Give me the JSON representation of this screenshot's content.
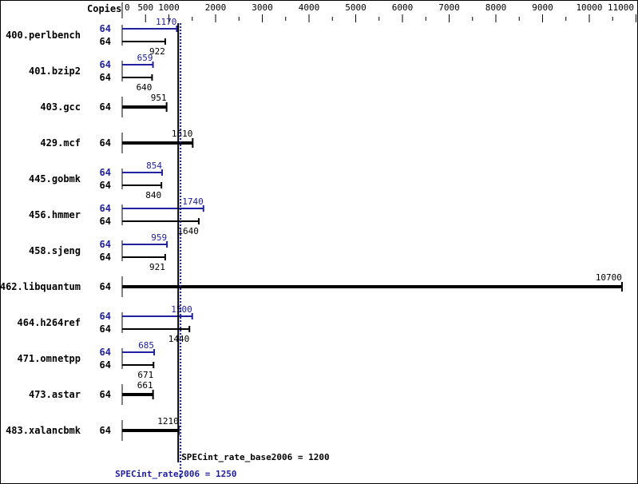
{
  "chart_data": {
    "type": "bar",
    "orientation": "horizontal",
    "copies_header": "Copies",
    "xlim": [
      0,
      11000
    ],
    "x_tick_labels": [
      "0",
      "500",
      "1000",
      "2000",
      "3000",
      "4000",
      "5000",
      "6000",
      "7000",
      "8000",
      "9000",
      "10000",
      "11000"
    ],
    "x_tick_values": [
      0,
      500,
      1000,
      2000,
      3000,
      4000,
      5000,
      6000,
      7000,
      8000,
      9000,
      10000,
      11000
    ],
    "grid": false,
    "colors": {
      "peak": "#2020a0",
      "base": "#000000"
    },
    "benchmarks": [
      {
        "name": "400.perlbench",
        "peak_copies": "64",
        "peak": 1170,
        "base_copies": "64",
        "base": 922
      },
      {
        "name": "401.bzip2",
        "peak_copies": "64",
        "peak": 659,
        "base_copies": "64",
        "base": 640
      },
      {
        "name": "403.gcc",
        "base_copies": "64",
        "base": 951
      },
      {
        "name": "429.mcf",
        "base_copies": "64",
        "base": 1510
      },
      {
        "name": "445.gobmk",
        "peak_copies": "64",
        "peak": 854,
        "base_copies": "64",
        "base": 840
      },
      {
        "name": "456.hmmer",
        "peak_copies": "64",
        "peak": 1740,
        "base_copies": "64",
        "base": 1640
      },
      {
        "name": "458.sjeng",
        "peak_copies": "64",
        "peak": 959,
        "base_copies": "64",
        "base": 921
      },
      {
        "name": "462.libquantum",
        "base_copies": "64",
        "base": 10700
      },
      {
        "name": "464.h264ref",
        "peak_copies": "64",
        "peak": 1500,
        "base_copies": "64",
        "base": 1440
      },
      {
        "name": "471.omnetpp",
        "peak_copies": "64",
        "peak": 685,
        "base_copies": "64",
        "base": 671
      },
      {
        "name": "473.astar",
        "base_copies": "64",
        "base": 661
      },
      {
        "name": "483.xalancbmk",
        "base_copies": "64",
        "base": 1210
      }
    ],
    "base_summary": {
      "label": "SPECint_rate_base2006 = 1200",
      "value": 1200
    },
    "peak_summary": {
      "label": "SPECint_rate2006 = 1250",
      "value": 1250
    }
  }
}
